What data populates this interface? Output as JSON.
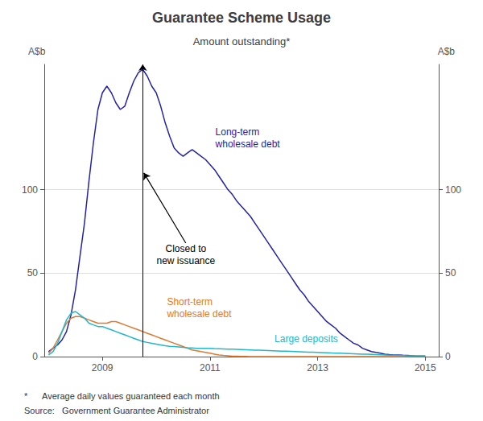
{
  "chart_data": {
    "type": "line",
    "title": "Guarantee Scheme Usage",
    "subtitle": "Amount outstanding*",
    "ylabel": "A$b",
    "y2label": "A$b",
    "footnotes": [
      "*      Average daily values guaranteed each month",
      "Source:   Government Guarantee Administrator"
    ],
    "xlim": [
      2007.92,
      2015.25
    ],
    "xticks": [
      2009,
      2011,
      2013,
      2015
    ],
    "ylim": [
      0,
      175
    ],
    "yticks": [
      0,
      50,
      100
    ],
    "y2lim": [
      0,
      175
    ],
    "y2ticks": [
      0,
      50,
      100
    ],
    "grid": true,
    "vertical_line": {
      "x": 2009.75,
      "color": "#000000"
    },
    "annotations": [
      {
        "text": "Closed to\nnew issuance",
        "x": 2010.55,
        "y": 68,
        "arrow_x": 2009.77,
        "arrow_y": 110
      }
    ],
    "series": [
      {
        "name": "Long-term\nwholesale debt",
        "color": "#2222aa",
        "label_x": 2011.1,
        "label_y": 138,
        "x": [
          2008.0,
          2008.083,
          2008.167,
          2008.25,
          2008.333,
          2008.417,
          2008.5,
          2008.583,
          2008.667,
          2008.75,
          2008.833,
          2008.917,
          2009.0,
          2009.083,
          2009.167,
          2009.25,
          2009.333,
          2009.417,
          2009.5,
          2009.583,
          2009.667,
          2009.75,
          2009.833,
          2009.917,
          2010.0,
          2010.083,
          2010.167,
          2010.25,
          2010.333,
          2010.417,
          2010.5,
          2010.583,
          2010.667,
          2010.75,
          2010.833,
          2010.917,
          2011.0,
          2011.083,
          2011.167,
          2011.25,
          2011.333,
          2011.417,
          2011.5,
          2011.583,
          2011.667,
          2011.75,
          2011.833,
          2011.917,
          2012.0,
          2012.083,
          2012.167,
          2012.25,
          2012.333,
          2012.417,
          2012.5,
          2012.583,
          2012.667,
          2012.75,
          2012.833,
          2012.917,
          2013.0,
          2013.083,
          2013.167,
          2013.25,
          2013.333,
          2013.417,
          2013.5,
          2013.583,
          2013.667,
          2013.75,
          2013.833,
          2013.917,
          2014.0,
          2014.083,
          2014.167,
          2014.25,
          2014.333,
          2014.417,
          2014.5,
          2014.583,
          2014.667,
          2014.75,
          2014.833,
          2014.917,
          2015.0
        ],
        "values": [
          3,
          5,
          7,
          10,
          15,
          25,
          40,
          60,
          80,
          105,
          128,
          148,
          158,
          162,
          158,
          152,
          148,
          150,
          158,
          165,
          170,
          172,
          168,
          162,
          158,
          150,
          140,
          132,
          125,
          122,
          120,
          122,
          124,
          122,
          120,
          118,
          115,
          112,
          108,
          104,
          100,
          97,
          93,
          90,
          87,
          84,
          80,
          76,
          72,
          68,
          64,
          60,
          56,
          52,
          48,
          44,
          40,
          37,
          33,
          30,
          27,
          24,
          21,
          19,
          17,
          14,
          12,
          10,
          8,
          7,
          5,
          4,
          3,
          2.5,
          2,
          1.5,
          1.2,
          1,
          1,
          0.8,
          0.7,
          0.5,
          0.3,
          0.2,
          0.2
        ]
      },
      {
        "name": "Short-term\nwholesale debt",
        "color": "#e07830",
        "label_x": 2010.2,
        "label_y": 22,
        "x": [
          2008.0,
          2008.083,
          2008.167,
          2008.25,
          2008.333,
          2008.417,
          2008.5,
          2008.583,
          2008.667,
          2008.75,
          2008.833,
          2008.917,
          2009.0,
          2009.083,
          2009.167,
          2009.25,
          2009.333,
          2009.417,
          2009.5,
          2009.583,
          2009.667,
          2009.75,
          2009.833,
          2009.917,
          2010.0,
          2010.083,
          2010.167,
          2010.25,
          2010.333,
          2010.417,
          2010.5,
          2010.583,
          2010.667,
          2010.75,
          2010.833,
          2010.917,
          2011.0,
          2011.083,
          2011.167,
          2011.25,
          2011.333,
          2011.417,
          2011.5,
          2011.583,
          2011.667,
          2011.75,
          2011.833,
          2011.917,
          2012.0,
          2012.083,
          2012.167,
          2012.25,
          2012.333,
          2012.417,
          2012.5,
          2012.583,
          2012.667,
          2012.75,
          2012.833,
          2012.917,
          2013.0,
          2013.083,
          2013.167,
          2013.25,
          2013.333,
          2013.417,
          2013.5,
          2013.583,
          2013.667,
          2013.75,
          2013.833,
          2013.917,
          2014.0,
          2014.083,
          2014.167,
          2014.25,
          2014.333,
          2014.417,
          2014.5,
          2014.583,
          2014.667,
          2014.75,
          2014.833,
          2014.917,
          2015.0
        ],
        "values": [
          2,
          5,
          10,
          15,
          20,
          23,
          24,
          24,
          23,
          22,
          21,
          20,
          20,
          20,
          21,
          21,
          20,
          19,
          18,
          17,
          16,
          15,
          14,
          13,
          12,
          11,
          10,
          9,
          8,
          7,
          6,
          5,
          4,
          3.5,
          3,
          2.5,
          2,
          1.5,
          1,
          0.7,
          0.5,
          0.3,
          0.2,
          0.1,
          0.1,
          0.05,
          0.02,
          0.01,
          0.0,
          0.0,
          0.0,
          0.0,
          0.0,
          0.0,
          0.0,
          0.0,
          0.0,
          0.0,
          0.0,
          0.0,
          0.0,
          0.0,
          0.0,
          0.0,
          0.0,
          0.0,
          0.0,
          0.0,
          0.0,
          0.0,
          0.0,
          0.0,
          0.0,
          0.0,
          0.0,
          0.0,
          0.0,
          0.0,
          0.0,
          0.0,
          0.0,
          0.0,
          0.0,
          0.0,
          0.0
        ]
      },
      {
        "name": "Large deposits",
        "color": "#20b8c8",
        "label_x": 2012.2,
        "label_y": 7,
        "x": [
          2008.0,
          2008.083,
          2008.167,
          2008.25,
          2008.333,
          2008.417,
          2008.5,
          2008.583,
          2008.667,
          2008.75,
          2008.833,
          2008.917,
          2009.0,
          2009.083,
          2009.167,
          2009.25,
          2009.333,
          2009.417,
          2009.5,
          2009.583,
          2009.667,
          2009.75,
          2009.833,
          2009.917,
          2010.0,
          2010.083,
          2010.167,
          2010.25,
          2010.333,
          2010.417,
          2010.5,
          2010.583,
          2010.667,
          2010.75,
          2010.833,
          2010.917,
          2011.0,
          2011.083,
          2011.167,
          2011.25,
          2011.333,
          2011.417,
          2011.5,
          2011.583,
          2011.667,
          2011.75,
          2011.833,
          2011.917,
          2012.0,
          2012.083,
          2012.167,
          2012.25,
          2012.333,
          2012.417,
          2012.5,
          2012.583,
          2012.667,
          2012.75,
          2012.833,
          2012.917,
          2013.0,
          2013.083,
          2013.167,
          2013.25,
          2013.333,
          2013.417,
          2013.5,
          2013.583,
          2013.667,
          2013.75,
          2013.833,
          2013.917,
          2014.0,
          2014.083,
          2014.167,
          2014.25,
          2014.333,
          2014.417,
          2014.5,
          2014.583,
          2014.667,
          2014.75,
          2014.833,
          2014.917,
          2015.0
        ],
        "values": [
          1,
          3,
          8,
          15,
          22,
          26,
          27,
          25,
          23,
          20,
          19,
          18,
          18,
          17,
          16,
          15,
          14,
          13,
          12,
          11,
          10,
          9,
          8.5,
          8,
          7.5,
          7,
          6.5,
          6.2,
          6,
          5.8,
          5.5,
          5.3,
          5.2,
          5,
          5,
          5,
          5,
          4.8,
          4.7,
          4.6,
          4.5,
          4.4,
          4.3,
          4.2,
          4.1,
          4.0,
          3.9,
          3.8,
          3.7,
          3.6,
          3.5,
          3.4,
          3.3,
          3.2,
          3.1,
          3.0,
          2.9,
          2.8,
          2.7,
          2.6,
          2.5,
          2.4,
          2.3,
          2.2,
          2.1,
          2.0,
          1.9,
          1.8,
          1.7,
          1.6,
          1.5,
          1.4,
          1.3,
          1.2,
          1.1,
          1.0,
          0.9,
          0.8,
          0.7,
          0.6,
          0.5,
          0.5,
          0.5,
          0.5,
          0.5
        ]
      }
    ]
  }
}
